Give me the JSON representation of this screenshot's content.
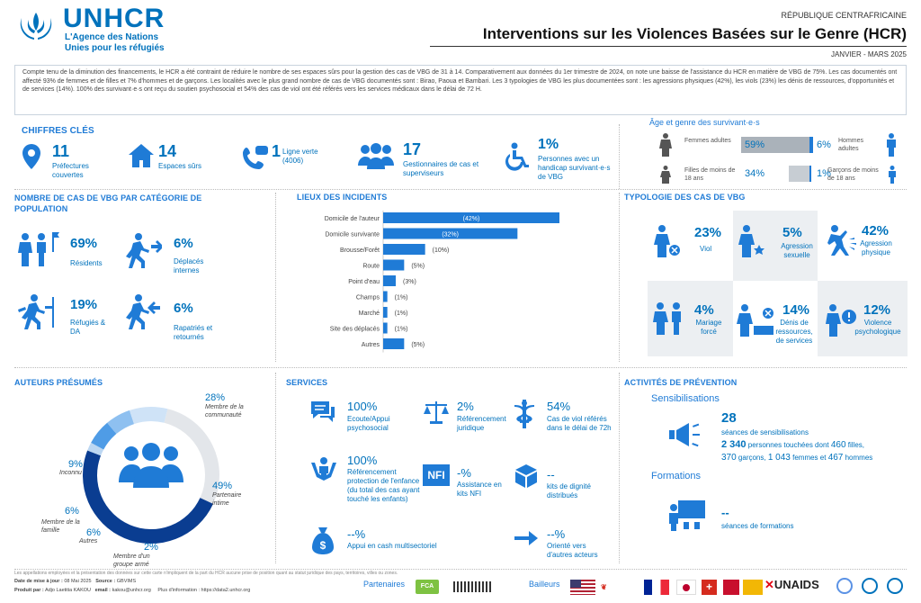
{
  "header": {
    "org_name": "UNHCR",
    "org_tag1": "L'Agence des Nations",
    "org_tag2": "Unies pour les réfugiés",
    "country": "RÉPUBLIQUE CENTRAFRICAINE",
    "title": "Interventions sur les Violences Basées sur le Genre (HCR)",
    "period": "JANVIER - MARS 2025"
  },
  "intro": {
    "text": "Compte tenu de la diminution des financements, le HCR a été contraint de réduire le nombre de ses espaces sûrs pour la gestion des cas de VBG de 31 à 14. Comparativement aux données du 1er trimestre de 2024, on note une baisse de l'assistance du HCR en matière de VBG de 75%. Les cas documentés ont affecté 93% de femmes et de filles et 7% d'hommes et de garçons. Les localités avec le plus grand nombre de cas de VBG documentés sont : Birao, Paoua et Bambari. Les 3 typologies de VBG les plus documentées sont : les agressions physiques (42%), les viols (23%) les dénis de ressources, d'opportunités et de services (14%). 100% des survivant·e·s ont reçu du soutien psychosocial et 54% des cas de viol ont été référés vers les services médicaux dans le délai de 72 H."
  },
  "key_figures": {
    "title": "CHIFFRES CLÉS",
    "items": [
      {
        "value": "11",
        "label": "Préfectures couvertes",
        "icon": "location-pin-icon"
      },
      {
        "value": "14",
        "label": "Espaces sûrs",
        "icon": "house-icon"
      },
      {
        "value": "1",
        "label": "Ligne verte (4006)",
        "icon": "phone-icon"
      },
      {
        "value": "17",
        "label": "Gestionnaires de cas et superviseurs",
        "icon": "group-icon"
      },
      {
        "value": "1%",
        "label": "Personnes avec un handicap survivant·e·s de VBG",
        "icon": "wheelchair-icon"
      }
    ]
  },
  "age_gender": {
    "title": "Âge et genre des survivant·e·s",
    "rows": [
      {
        "left_label": "Femmes adultes",
        "left_pct": "59%",
        "left_val": 0.59,
        "right_pct": "6%",
        "right_label": "Hommes adultes"
      },
      {
        "left_label": "Filles de moins de 18 ans",
        "left_pct": "34%",
        "left_val": 0.34,
        "right_pct": "1%",
        "right_label": "Garçons de moins de 18 ans"
      }
    ]
  },
  "population": {
    "title": "NOMBRE DE CAS DE VBG PAR CATÉGORIE DE POPULATION",
    "items": [
      {
        "pct": "69%",
        "label": "Résidents",
        "icon": "residents-icon"
      },
      {
        "pct": "6%",
        "label": "Déplacés internes",
        "icon": "idp-icon"
      },
      {
        "pct": "19%",
        "label": "Réfugiés & DA",
        "icon": "refugee-icon"
      },
      {
        "pct": "6%",
        "label": "Rapatriés et retournés",
        "icon": "returnee-icon"
      }
    ]
  },
  "incidents": {
    "title": "LIEUX DES INCIDENTS"
  },
  "chart_data": {
    "type": "bar",
    "orientation": "horizontal",
    "title": "LIEUX DES INCIDENTS",
    "categories": [
      "Domicile de l'auteur",
      "Domicile survivante",
      "Brousse/Forêt",
      "Route",
      "Point d'eau",
      "Champs",
      "Marché",
      "Site des déplacés",
      "Autres"
    ],
    "values": [
      42,
      32,
      10,
      5,
      3,
      1,
      1,
      1,
      5
    ],
    "value_labels": [
      "(42%)",
      "(32%)",
      "(10%)",
      "(5%)",
      "(3%)",
      "(1%)",
      "(1%)",
      "(1%)",
      "(5%)"
    ],
    "xlim": [
      0,
      45
    ]
  },
  "typology": {
    "title": "TYPOLOGIE DES CAS DE VBG",
    "items": [
      {
        "pct": "23%",
        "label": "Viol",
        "icon": "rape-icon"
      },
      {
        "pct": "5%",
        "label": "Agression sexuelle",
        "icon": "sexual-assault-icon"
      },
      {
        "pct": "42%",
        "label": "Agression physique",
        "icon": "physical-assault-icon"
      },
      {
        "pct": "4%",
        "label": "Mariage forcé",
        "icon": "forced-marriage-icon"
      },
      {
        "pct": "14%",
        "label": "Dénis de ressources, de services",
        "icon": "resource-denial-icon"
      },
      {
        "pct": "12%",
        "label": "Violence psychologique",
        "icon": "psych-violence-icon"
      }
    ]
  },
  "perpetrators": {
    "title": "AUTEURS PRÉSUMÉS",
    "slices": [
      {
        "pct": "28%",
        "label": "Membre de la communauté",
        "value": 28,
        "color": "#e3e6ea"
      },
      {
        "pct": "49%",
        "label": "Partenaire intime",
        "value": 49,
        "color": "#0a3d91"
      },
      {
        "pct": "2%",
        "label": "Membre d'un groupe armé",
        "value": 2,
        "color": "#bcd7f2"
      },
      {
        "pct": "6%",
        "label": "Autres",
        "value": 6,
        "color": "#4f9ce6"
      },
      {
        "pct": "6%",
        "label": "Membre de la famille",
        "value": 6,
        "color": "#8ec0f0"
      },
      {
        "pct": "9%",
        "label": "Inconnu",
        "value": 9,
        "color": "#cfe3f7"
      }
    ]
  },
  "services": {
    "title": "SERVICES",
    "items": [
      {
        "pct": "100%",
        "label": "Ecoute/Appui psychosocial",
        "icon": "chat-icon"
      },
      {
        "pct": "2%",
        "label": "Référencement juridique",
        "icon": "scale-icon"
      },
      {
        "pct": "54%",
        "label": "Cas de viol référés dans le délai de 72h",
        "icon": "medical-icon"
      },
      {
        "pct": "100%",
        "label": "Référencement protection de l'enfance (du total des cas ayant touché les enfants)",
        "icon": "child-protection-icon"
      },
      {
        "pct": "-%",
        "label": "Assistance en kits NFI",
        "icon": "nfi-icon"
      },
      {
        "pct": "--",
        "label": "kits de dignité distribués",
        "icon": "box-icon"
      },
      {
        "pct": "--%",
        "label": "Appui en cash multisectoriel",
        "icon": "cash-icon"
      },
      {
        "pct": "--%",
        "label": "Orienté vers d'autres acteurs",
        "icon": "arrow-icon"
      }
    ]
  },
  "prevention": {
    "title": "ACTIVITÉS DE PRÉVENTION",
    "sensib_title": "Sensibilisations",
    "sessions": "28",
    "sessions_label": "séances de sensibilisations",
    "reached": "2 340",
    "reached_text": "personnes touchées dont",
    "girls": "460",
    "girls_label": "filles,",
    "boys": "370",
    "boys_label": "garçons,",
    "women": "1 043",
    "women_label": "femmes et",
    "men": "467",
    "men_label": "hommes",
    "training_title": "Formations",
    "training_val": "--",
    "training_label": "séances de formations"
  },
  "footer": {
    "disclaimer": "Les appellations employées et la présentation des données sur cette carte n'impliquent de la part du HCR aucune prise de position quant au statut juridique des pays, territoires, villes ou zones.",
    "date_label": "Date de mise à jour :",
    "date": "08 Mai 2025",
    "source_label": "Source :",
    "source": "GBVIMS",
    "author_label": "Produit par :",
    "author": "Adjo Laetitia KAKOU",
    "email_label": "email :",
    "email": "kakou@unhcr.org",
    "more": "Plus d'information : https://data2.unhcr.org",
    "partners": "Partenaires",
    "donors": "Bailleurs",
    "fca": "FCA",
    "unaids": "UNAIDS"
  }
}
